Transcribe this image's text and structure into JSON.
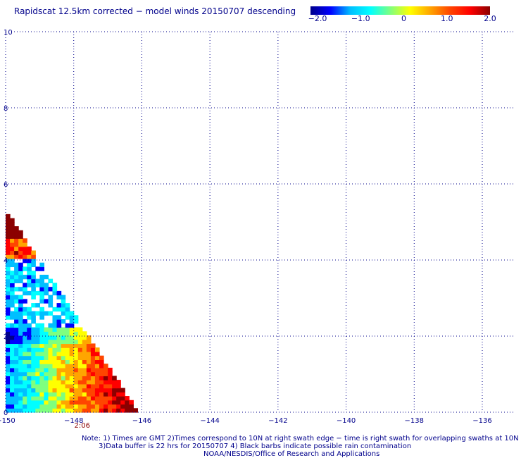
{
  "title": "Rapidscat 12.5km corrected − model winds 20150707 descending",
  "colorbar": {
    "labels": [
      "−2.0",
      "−1.0",
      "0",
      "1.0",
      "2.0"
    ],
    "values": [
      -2.0,
      -1.0,
      0,
      1.0,
      2.0
    ],
    "colors": [
      "#00008b",
      "#0000ff",
      "#00bfff",
      "#00ffff",
      "#7fff7f",
      "#ffff00",
      "#ffa500",
      "#ff4500",
      "#ff0000",
      "#8b0000"
    ]
  },
  "chart_data": {
    "type": "heatmap",
    "xlim": [
      -150,
      -135
    ],
    "ylim": [
      0,
      10
    ],
    "lon_ticks": [
      -150,
      -148,
      -146,
      -144,
      -142,
      -140,
      -138,
      -136
    ],
    "lon_tick_labels": [
      "−150",
      "−148",
      "−146",
      "−144",
      "−142",
      "−140",
      "−138",
      "−136"
    ],
    "lat_ticks": [
      0,
      2,
      4,
      6,
      8,
      10
    ],
    "lat_tick_labels": [
      "0",
      "2",
      "4",
      "6",
      "8",
      "10"
    ],
    "grid": true,
    "time_annotation": {
      "label": "2:06",
      "lon": -148
    },
    "cell_size_deg": 0.125,
    "swath_edge": "lower-left triangle from (-150, 5.2) to (-146.2, 0)"
  },
  "notes": {
    "line1": "Note: 1) Times are GMT 2)Times correspond to 10N at right swath edge − time is right swath for overlapping swaths at 10N",
    "line2": "3)Data buffer is 22 hrs for 20150707 4) Black barbs indicate possible rain contamination",
    "line3": "NOAA/NESDIS/Office of Research and Applications"
  }
}
